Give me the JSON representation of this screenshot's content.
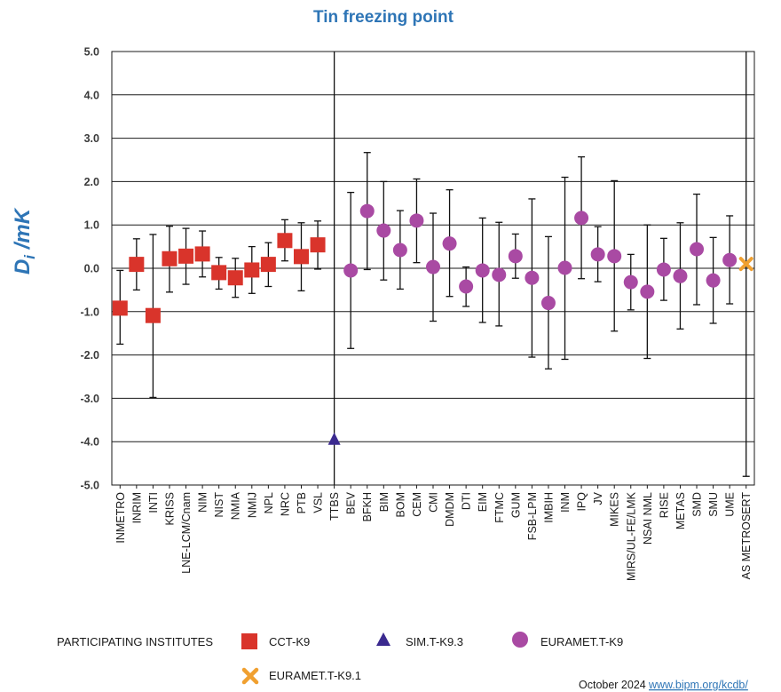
{
  "colors": {
    "title": "#2e75b6",
    "ylabel": "#2e75b6",
    "link": "#2e75b6",
    "cct": "#d9342b",
    "sim": "#3b2a8f",
    "euramet": "#a94aa3",
    "euramet91": "#f0a030",
    "grid": "#1a1a1a"
  },
  "footer": {
    "date": "October 2024",
    "link": "www.bipm.org/kcdb/"
  },
  "legend": {
    "heading": "PARTICIPATING INSTITUTES",
    "items": [
      {
        "label": "CCT-K9",
        "marker": "square",
        "color": "#d9342b"
      },
      {
        "label": "SIM.T-K9.3",
        "marker": "triangle",
        "color": "#3b2a8f"
      },
      {
        "label": "EURAMET.T-K9",
        "marker": "circle",
        "color": "#a94aa3"
      },
      {
        "label": "EURAMET.T-K9.1",
        "marker": "cross",
        "color": "#f0a030"
      }
    ]
  },
  "chart_data": {
    "type": "scatter",
    "title": "Tin freezing point",
    "ylabel_main": "D",
    "ylabel_sub": "i",
    "ylabel_unit": " /mK",
    "xlabel": "",
    "ylim": [
      -5,
      5
    ],
    "yticks": [
      "5.0",
      "4.0",
      "3.0",
      "2.0",
      "1.0",
      "0.0",
      "-1.0",
      "-2.0",
      "-3.0",
      "-4.0",
      "-5.0"
    ],
    "grid": true,
    "legend_position": "bottom",
    "categories": [
      "INMETRO",
      "INRIM",
      "INTI",
      "KRISS",
      "LNE-LCM/Cnam",
      "NIM",
      "NIST",
      "NMIA",
      "NMIJ",
      "NPL",
      "NRC",
      "PTB",
      "VSL",
      "TTBS",
      "BEV",
      "BFKH",
      "BIM",
      "BOM",
      "CEM",
      "CMI",
      "DMDM",
      "DTI",
      "EIM",
      "FTMC",
      "GUM",
      "FSB-LPM",
      "IMBIH",
      "INM",
      "IPQ",
      "JV",
      "MIKES",
      "MIRS/UL-FE/LMK",
      "NSAI NML",
      "RISE",
      "METAS",
      "SMD",
      "SMU",
      "UME",
      "AS METROSERT"
    ],
    "series": [
      {
        "name": "CCT-K9",
        "marker": "square",
        "points": [
          {
            "x": "INMETRO",
            "y": -0.92,
            "lo": -1.75,
            "hi": -0.05
          },
          {
            "x": "INRIM",
            "y": 0.09,
            "lo": -0.5,
            "hi": 0.68
          },
          {
            "x": "INTI",
            "y": -1.09,
            "lo": -2.98,
            "hi": 0.78
          },
          {
            "x": "KRISS",
            "y": 0.22,
            "lo": -0.55,
            "hi": 0.97
          },
          {
            "x": "LNE-LCM/Cnam",
            "y": 0.28,
            "lo": -0.37,
            "hi": 0.92
          },
          {
            "x": "NIM",
            "y": 0.33,
            "lo": -0.2,
            "hi": 0.86
          },
          {
            "x": "NIST",
            "y": -0.1,
            "lo": -0.48,
            "hi": 0.25
          },
          {
            "x": "NMIA",
            "y": -0.22,
            "lo": -0.67,
            "hi": 0.23
          },
          {
            "x": "NMIJ",
            "y": -0.04,
            "lo": -0.58,
            "hi": 0.5
          },
          {
            "x": "NPL",
            "y": 0.09,
            "lo": -0.42,
            "hi": 0.59
          },
          {
            "x": "NRC",
            "y": 0.64,
            "lo": 0.17,
            "hi": 1.12
          },
          {
            "x": "PTB",
            "y": 0.27,
            "lo": -0.52,
            "hi": 1.05
          },
          {
            "x": "VSL",
            "y": 0.54,
            "lo": -0.02,
            "hi": 1.09
          }
        ]
      },
      {
        "name": "SIM.T-K9.3",
        "marker": "triangle",
        "points": [
          {
            "x": "TTBS",
            "y": -3.95,
            "lo": -5,
            "hi": 5
          }
        ]
      },
      {
        "name": "EURAMET.T-K9",
        "marker": "circle",
        "points": [
          {
            "x": "BEV",
            "y": -0.05,
            "lo": -1.85,
            "hi": 1.75
          },
          {
            "x": "BFKH",
            "y": 1.32,
            "lo": -0.03,
            "hi": 2.67
          },
          {
            "x": "BIM",
            "y": 0.87,
            "lo": -0.27,
            "hi": 2.0
          },
          {
            "x": "BOM",
            "y": 0.42,
            "lo": -0.48,
            "hi": 1.33
          },
          {
            "x": "CEM",
            "y": 1.1,
            "lo": 0.13,
            "hi": 2.06
          },
          {
            "x": "CMI",
            "y": 0.03,
            "lo": -1.22,
            "hi": 1.27
          },
          {
            "x": "DMDM",
            "y": 0.57,
            "lo": -0.65,
            "hi": 1.81
          },
          {
            "x": "DTI",
            "y": -0.42,
            "lo": -0.88,
            "hi": 0.03
          },
          {
            "x": "EIM",
            "y": -0.05,
            "lo": -1.25,
            "hi": 1.16
          },
          {
            "x": "FTMC",
            "y": -0.15,
            "lo": -1.33,
            "hi": 1.06
          },
          {
            "x": "GUM",
            "y": 0.28,
            "lo": -0.23,
            "hi": 0.79
          },
          {
            "x": "FSB-LPM",
            "y": -0.22,
            "lo": -2.05,
            "hi": 1.6
          },
          {
            "x": "IMBIH",
            "y": -0.8,
            "lo": -2.32,
            "hi": 0.73
          },
          {
            "x": "INM",
            "y": 0.01,
            "lo": -2.1,
            "hi": 2.1
          },
          {
            "x": "IPQ",
            "y": 1.16,
            "lo": -0.24,
            "hi": 2.57
          },
          {
            "x": "JV",
            "y": 0.32,
            "lo": -0.31,
            "hi": 0.96
          },
          {
            "x": "MIKES",
            "y": 0.28,
            "lo": -1.45,
            "hi": 2.02
          },
          {
            "x": "MIRS/UL-FE/LMK",
            "y": -0.32,
            "lo": -0.96,
            "hi": 0.32
          },
          {
            "x": "NSAI NML",
            "y": -0.54,
            "lo": -2.08,
            "hi": 1.0
          },
          {
            "x": "RISE",
            "y": -0.03,
            "lo": -0.74,
            "hi": 0.69
          },
          {
            "x": "METAS",
            "y": -0.18,
            "lo": -1.4,
            "hi": 1.05
          },
          {
            "x": "SMD",
            "y": 0.44,
            "lo": -0.84,
            "hi": 1.71
          },
          {
            "x": "SMU",
            "y": -0.28,
            "lo": -1.27,
            "hi": 0.71
          },
          {
            "x": "UME",
            "y": 0.19,
            "lo": -0.82,
            "hi": 1.21
          }
        ]
      },
      {
        "name": "EURAMET.T-K9.1",
        "marker": "cross",
        "points": [
          {
            "x": "AS METROSERT",
            "y": 0.1,
            "lo": -4.8,
            "hi": 5
          }
        ]
      }
    ]
  }
}
